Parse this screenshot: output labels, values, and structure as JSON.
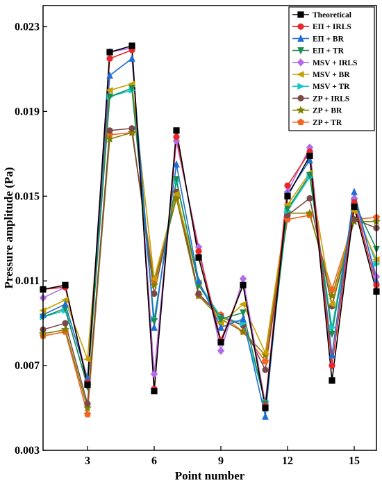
{
  "chart_data": {
    "type": "line",
    "xlabel": "Point number",
    "ylabel": "Pressure amplitude (Pa)",
    "xlim": [
      1,
      16
    ],
    "ylim": [
      0.003,
      0.024
    ],
    "xticks": [
      3,
      6,
      9,
      12,
      15
    ],
    "yticks": [
      0.003,
      0.007,
      0.011,
      0.015,
      0.019,
      0.023
    ],
    "ytick_labels": [
      "0.003",
      "0.007",
      "0.011",
      "0.015",
      "0.019",
      "0.023"
    ],
    "legend_position": "top-right",
    "grid": false,
    "x": [
      1,
      2,
      3,
      4,
      5,
      6,
      7,
      8,
      9,
      10,
      11,
      12,
      13,
      14,
      15,
      16
    ],
    "series": [
      {
        "name": "Theoretical",
        "color": "#000000",
        "marker": "square",
        "values": [
          0.0106,
          0.0108,
          0.0061,
          0.0218,
          0.0221,
          0.0058,
          0.0181,
          0.0121,
          0.0081,
          0.0108,
          0.005,
          0.015,
          0.0169,
          0.0063,
          0.0145,
          0.0105
        ]
      },
      {
        "name": "EΠ + IRLS",
        "color": "#e8262b",
        "marker": "circle",
        "values": [
          0.0106,
          0.0107,
          0.0062,
          0.0215,
          0.0219,
          0.0059,
          0.0178,
          0.0124,
          0.0082,
          0.0108,
          0.0051,
          0.0155,
          0.0171,
          0.007,
          0.0147,
          0.0108
        ]
      },
      {
        "name": "EΠ + BR",
        "color": "#1f6ed4",
        "marker": "triangle-up",
        "values": [
          0.0094,
          0.0099,
          0.0064,
          0.0207,
          0.0215,
          0.0088,
          0.0165,
          0.011,
          0.0088,
          0.0092,
          0.0046,
          0.0151,
          0.0167,
          0.0075,
          0.0152,
          0.011
        ]
      },
      {
        "name": "EΠ + TR",
        "color": "#1d8c50",
        "marker": "triangle-down",
        "values": [
          0.0093,
          0.0097,
          0.006,
          0.0197,
          0.0201,
          0.0091,
          0.0158,
          0.0108,
          0.0092,
          0.0095,
          0.0052,
          0.0144,
          0.016,
          0.0085,
          0.0147,
          0.0125
        ]
      },
      {
        "name": "MSV + IRLS",
        "color": "#b36be8",
        "marker": "diamond",
        "values": [
          0.0102,
          0.0107,
          0.0063,
          0.0218,
          0.022,
          0.0066,
          0.0176,
          0.0126,
          0.0077,
          0.0111,
          0.0052,
          0.0152,
          0.0173,
          0.007,
          0.0149,
          0.0112
        ]
      },
      {
        "name": "MSV + BR",
        "color": "#c8a000",
        "marker": "triangle-left",
        "values": [
          0.0096,
          0.0101,
          0.0073,
          0.02,
          0.0203,
          0.0111,
          0.0151,
          0.0109,
          0.009,
          0.0099,
          0.0076,
          0.0146,
          0.0161,
          0.0099,
          0.0143,
          0.012
        ]
      },
      {
        "name": "MSV + TR",
        "color": "#14c8c8",
        "marker": "triangle-right",
        "values": [
          0.0093,
          0.0096,
          0.0061,
          0.0197,
          0.02,
          0.0092,
          0.0157,
          0.0109,
          0.0093,
          0.009,
          0.0053,
          0.0143,
          0.0159,
          0.0088,
          0.0146,
          0.0118
        ]
      },
      {
        "name": "ZP + IRLS",
        "color": "#7a4a4a",
        "marker": "circle",
        "values": [
          0.0087,
          0.009,
          0.0052,
          0.0181,
          0.0182,
          0.0104,
          0.0152,
          0.0104,
          0.0093,
          0.0089,
          0.0068,
          0.0141,
          0.0149,
          0.0098,
          0.0139,
          0.0135
        ]
      },
      {
        "name": "ZP + BR",
        "color": "#808000",
        "marker": "star",
        "values": [
          0.0085,
          0.0087,
          0.005,
          0.0177,
          0.018,
          0.0108,
          0.0149,
          0.0103,
          0.0092,
          0.0086,
          0.0075,
          0.0142,
          0.0142,
          0.0103,
          0.0138,
          0.0138
        ]
      },
      {
        "name": "ZP + TR",
        "color": "#f26522",
        "marker": "pentagon",
        "values": [
          0.0084,
          0.0086,
          0.0047,
          0.0179,
          0.018,
          0.011,
          0.0149,
          0.0103,
          0.0094,
          0.0086,
          0.0072,
          0.0139,
          0.0141,
          0.0106,
          0.0139,
          0.014
        ]
      }
    ]
  }
}
